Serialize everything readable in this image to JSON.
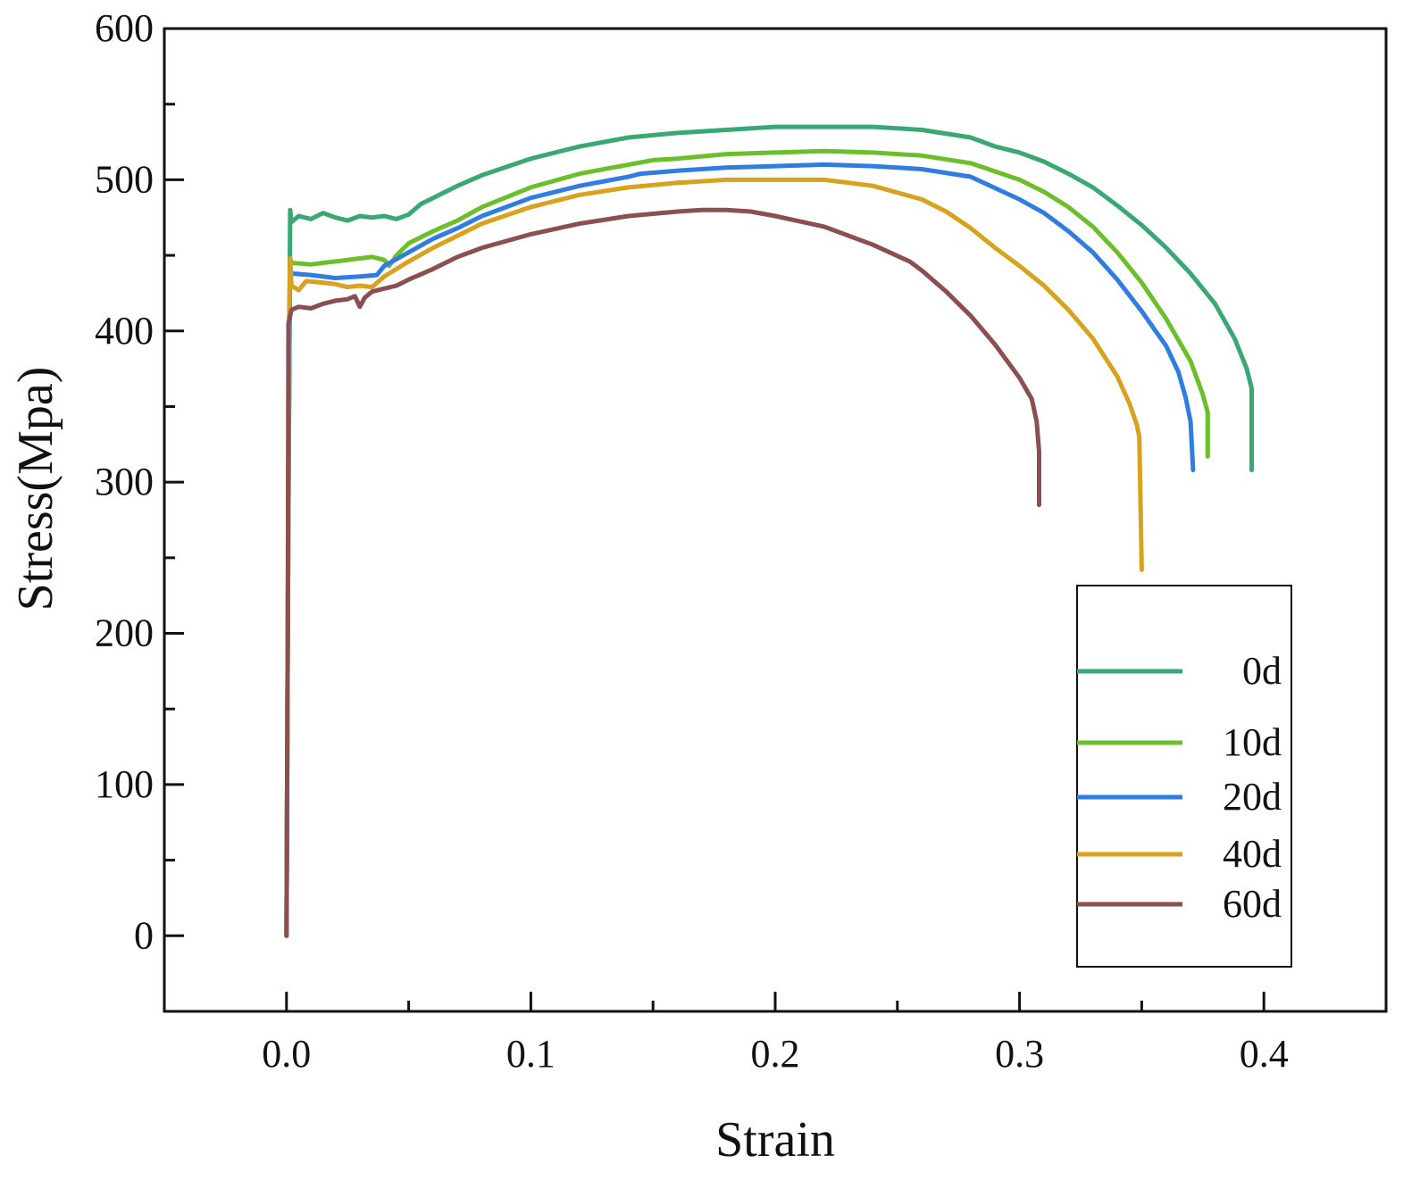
{
  "chart_data": {
    "type": "line",
    "title": "",
    "xlabel": "Strain",
    "ylabel": "Stress(Mpa)",
    "xlim": [
      -0.05,
      0.45
    ],
    "ylim": [
      -50,
      600
    ],
    "xticks": [
      0.0,
      0.1,
      0.2,
      0.3,
      0.4
    ],
    "xtick_labels": [
      "0.0",
      "0.1",
      "0.2",
      "0.3",
      "0.4"
    ],
    "xminor": [
      -0.05,
      0.05,
      0.15,
      0.25,
      0.35,
      0.45
    ],
    "yticks": [
      0,
      100,
      200,
      300,
      400,
      500,
      600
    ],
    "ytick_labels": [
      "0",
      "100",
      "200",
      "300",
      "400",
      "500",
      "600"
    ],
    "yminor": [
      -50,
      50,
      150,
      250,
      350,
      450,
      550
    ],
    "grid": false,
    "legend_position": "bottom-right",
    "series": [
      {
        "name": "0d",
        "color": "#3aa874",
        "points": [
          [
            0.0,
            0
          ],
          [
            0.0005,
            200
          ],
          [
            0.0012,
            400
          ],
          [
            0.0015,
            480
          ],
          [
            0.002,
            472
          ],
          [
            0.005,
            476
          ],
          [
            0.01,
            474
          ],
          [
            0.015,
            478
          ],
          [
            0.02,
            475
          ],
          [
            0.025,
            473
          ],
          [
            0.03,
            476
          ],
          [
            0.035,
            475
          ],
          [
            0.04,
            476
          ],
          [
            0.045,
            474
          ],
          [
            0.05,
            477
          ],
          [
            0.055,
            484
          ],
          [
            0.06,
            488
          ],
          [
            0.07,
            496
          ],
          [
            0.08,
            503
          ],
          [
            0.1,
            514
          ],
          [
            0.12,
            522
          ],
          [
            0.14,
            528
          ],
          [
            0.16,
            531
          ],
          [
            0.18,
            533
          ],
          [
            0.2,
            535
          ],
          [
            0.22,
            535
          ],
          [
            0.24,
            535
          ],
          [
            0.26,
            533
          ],
          [
            0.28,
            528
          ],
          [
            0.29,
            522
          ],
          [
            0.3,
            518
          ],
          [
            0.31,
            512
          ],
          [
            0.32,
            504
          ],
          [
            0.33,
            495
          ],
          [
            0.34,
            483
          ],
          [
            0.35,
            470
          ],
          [
            0.36,
            455
          ],
          [
            0.37,
            438
          ],
          [
            0.38,
            418
          ],
          [
            0.388,
            395
          ],
          [
            0.393,
            375
          ],
          [
            0.395,
            362
          ],
          [
            0.395,
            308
          ]
        ]
      },
      {
        "name": "10d",
        "color": "#6bbf2a",
        "points": [
          [
            0.0,
            0
          ],
          [
            0.0005,
            200
          ],
          [
            0.0012,
            400
          ],
          [
            0.0015,
            448
          ],
          [
            0.002,
            445
          ],
          [
            0.01,
            444
          ],
          [
            0.02,
            446
          ],
          [
            0.03,
            448
          ],
          [
            0.035,
            449
          ],
          [
            0.04,
            447
          ],
          [
            0.042,
            443
          ],
          [
            0.045,
            450
          ],
          [
            0.05,
            458
          ],
          [
            0.06,
            466
          ],
          [
            0.07,
            473
          ],
          [
            0.08,
            482
          ],
          [
            0.1,
            495
          ],
          [
            0.12,
            504
          ],
          [
            0.14,
            510
          ],
          [
            0.15,
            513
          ],
          [
            0.16,
            514
          ],
          [
            0.18,
            517
          ],
          [
            0.2,
            518
          ],
          [
            0.22,
            519
          ],
          [
            0.24,
            518
          ],
          [
            0.26,
            516
          ],
          [
            0.28,
            511
          ],
          [
            0.3,
            500
          ],
          [
            0.31,
            492
          ],
          [
            0.32,
            482
          ],
          [
            0.33,
            469
          ],
          [
            0.34,
            452
          ],
          [
            0.35,
            432
          ],
          [
            0.36,
            408
          ],
          [
            0.37,
            380
          ],
          [
            0.375,
            358
          ],
          [
            0.377,
            346
          ],
          [
            0.377,
            317
          ]
        ]
      },
      {
        "name": "20d",
        "color": "#2f7de1",
        "points": [
          [
            0.0,
            0
          ],
          [
            0.0005,
            200
          ],
          [
            0.0012,
            400
          ],
          [
            0.0015,
            440
          ],
          [
            0.002,
            438
          ],
          [
            0.01,
            437
          ],
          [
            0.02,
            435
          ],
          [
            0.03,
            436
          ],
          [
            0.037,
            437
          ],
          [
            0.04,
            443
          ],
          [
            0.05,
            452
          ],
          [
            0.06,
            461
          ],
          [
            0.07,
            468
          ],
          [
            0.08,
            476
          ],
          [
            0.1,
            488
          ],
          [
            0.12,
            496
          ],
          [
            0.14,
            502
          ],
          [
            0.145,
            504
          ],
          [
            0.16,
            506
          ],
          [
            0.18,
            508
          ],
          [
            0.2,
            509
          ],
          [
            0.22,
            510
          ],
          [
            0.24,
            509
          ],
          [
            0.26,
            507
          ],
          [
            0.28,
            502
          ],
          [
            0.3,
            487
          ],
          [
            0.31,
            478
          ],
          [
            0.32,
            466
          ],
          [
            0.33,
            452
          ],
          [
            0.34,
            434
          ],
          [
            0.35,
            413
          ],
          [
            0.36,
            390
          ],
          [
            0.365,
            373
          ],
          [
            0.368,
            356
          ],
          [
            0.37,
            340
          ],
          [
            0.371,
            308
          ]
        ]
      },
      {
        "name": "40d",
        "color": "#d9a21e",
        "points": [
          [
            0.0,
            0
          ],
          [
            0.0005,
            200
          ],
          [
            0.001,
            400
          ],
          [
            0.0015,
            448
          ],
          [
            0.002,
            430
          ],
          [
            0.005,
            427
          ],
          [
            0.008,
            433
          ],
          [
            0.015,
            432
          ],
          [
            0.02,
            431
          ],
          [
            0.025,
            429
          ],
          [
            0.03,
            430
          ],
          [
            0.035,
            429
          ],
          [
            0.04,
            436
          ],
          [
            0.05,
            446
          ],
          [
            0.06,
            455
          ],
          [
            0.07,
            463
          ],
          [
            0.08,
            471
          ],
          [
            0.1,
            482
          ],
          [
            0.12,
            490
          ],
          [
            0.14,
            495
          ],
          [
            0.16,
            498
          ],
          [
            0.18,
            500
          ],
          [
            0.2,
            500
          ],
          [
            0.22,
            500
          ],
          [
            0.24,
            496
          ],
          [
            0.26,
            487
          ],
          [
            0.27,
            479
          ],
          [
            0.28,
            468
          ],
          [
            0.29,
            455
          ],
          [
            0.3,
            443
          ],
          [
            0.31,
            430
          ],
          [
            0.32,
            414
          ],
          [
            0.33,
            395
          ],
          [
            0.34,
            370
          ],
          [
            0.345,
            352
          ],
          [
            0.348,
            338
          ],
          [
            0.349,
            330
          ],
          [
            0.35,
            242
          ]
        ]
      },
      {
        "name": "60d",
        "color": "#8b4f4f",
        "points": [
          [
            0.0,
            0
          ],
          [
            0.0005,
            200
          ],
          [
            0.0008,
            405
          ],
          [
            0.002,
            414
          ],
          [
            0.005,
            416
          ],
          [
            0.01,
            415
          ],
          [
            0.015,
            418
          ],
          [
            0.02,
            420
          ],
          [
            0.025,
            421
          ],
          [
            0.028,
            423
          ],
          [
            0.03,
            416
          ],
          [
            0.032,
            422
          ],
          [
            0.035,
            426
          ],
          [
            0.04,
            428
          ],
          [
            0.045,
            430
          ],
          [
            0.05,
            434
          ],
          [
            0.06,
            441
          ],
          [
            0.07,
            449
          ],
          [
            0.08,
            455
          ],
          [
            0.1,
            464
          ],
          [
            0.12,
            471
          ],
          [
            0.14,
            476
          ],
          [
            0.16,
            479
          ],
          [
            0.17,
            480
          ],
          [
            0.18,
            480
          ],
          [
            0.19,
            479
          ],
          [
            0.2,
            476
          ],
          [
            0.22,
            469
          ],
          [
            0.24,
            457
          ],
          [
            0.255,
            446
          ],
          [
            0.26,
            440
          ],
          [
            0.27,
            426
          ],
          [
            0.28,
            410
          ],
          [
            0.29,
            391
          ],
          [
            0.3,
            369
          ],
          [
            0.305,
            355
          ],
          [
            0.307,
            340
          ],
          [
            0.308,
            320
          ],
          [
            0.308,
            285
          ]
        ]
      }
    ]
  }
}
